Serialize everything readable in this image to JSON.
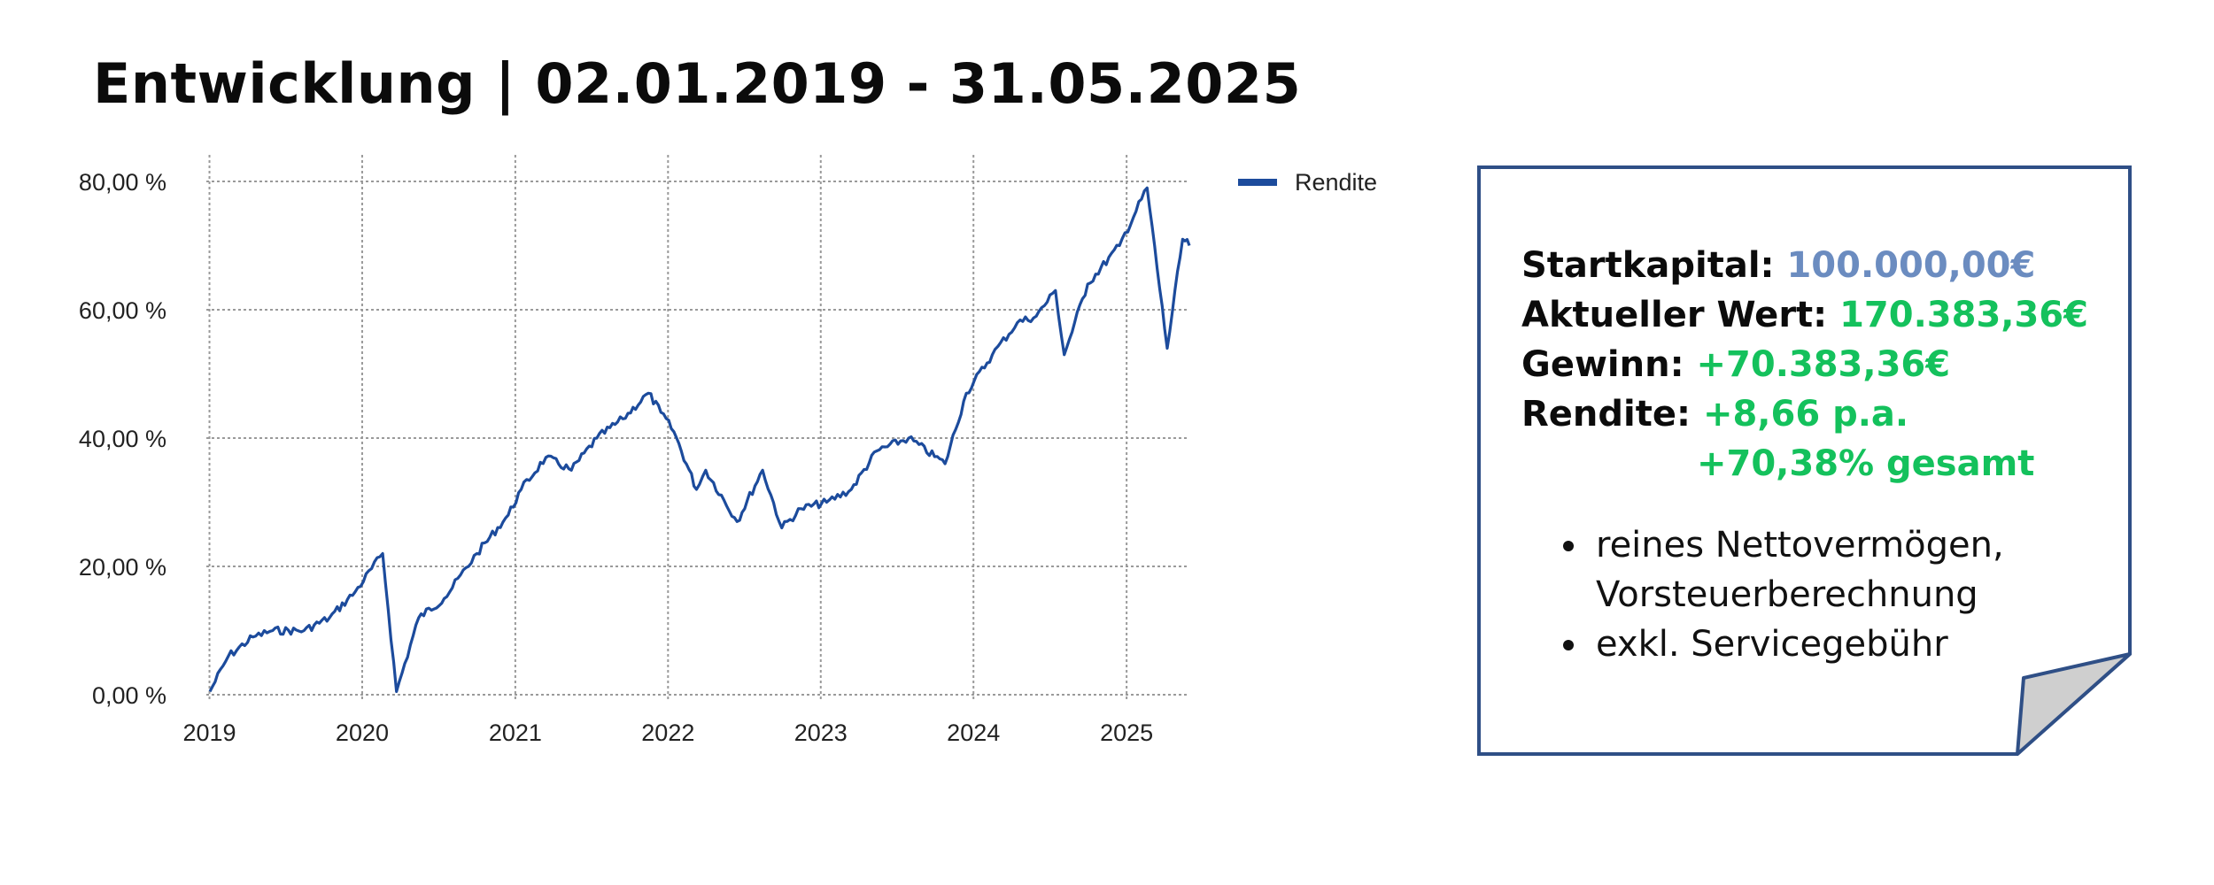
{
  "title": "Entwicklung | 02.01.2019 - 31.05.2025",
  "chart_data": {
    "type": "line",
    "xlabel": "",
    "ylabel": "",
    "x_ticks": [
      "2019",
      "2020",
      "2021",
      "2022",
      "2023",
      "2024",
      "2025"
    ],
    "y_ticks": [
      "0,00 %",
      "20,00 %",
      "40,00 %",
      "60,00 %",
      "80,00 %"
    ],
    "xlim": [
      "2019-01-02",
      "2025-05-31"
    ],
    "ylim": [
      0,
      80
    ],
    "grid": true,
    "legend_position": "top-right",
    "series": [
      {
        "name": "Rendite",
        "color": "#1c4b9c",
        "x": [
          "2019-01-02",
          "2019-02-15",
          "2019-04-15",
          "2019-06-01",
          "2019-08-15",
          "2019-10-15",
          "2019-12-15",
          "2020-02-19",
          "2020-03-23",
          "2020-05-15",
          "2020-07-15",
          "2020-10-01",
          "2020-12-15",
          "2021-01-15",
          "2021-03-15",
          "2021-05-15",
          "2021-07-15",
          "2021-09-15",
          "2021-11-15",
          "2021-12-15",
          "2022-01-15",
          "2022-03-10",
          "2022-04-01",
          "2022-06-15",
          "2022-08-15",
          "2022-09-30",
          "2022-11-15",
          "2023-01-15",
          "2023-03-15",
          "2023-05-15",
          "2023-07-30",
          "2023-10-25",
          "2023-12-15",
          "2024-02-15",
          "2024-04-15",
          "2024-05-30",
          "2024-07-15",
          "2024-08-05",
          "2024-09-30",
          "2024-12-15",
          "2025-02-19",
          "2025-04-08",
          "2025-05-15",
          "2025-05-31"
        ],
        "y": [
          0.5,
          6,
          9,
          10,
          10,
          12,
          16,
          22,
          0.5,
          12,
          15,
          22,
          28,
          32,
          37,
          35,
          40,
          43,
          47,
          44,
          41,
          32,
          35,
          27,
          35,
          26,
          29,
          30,
          32,
          38,
          40,
          36,
          47,
          53,
          58,
          59,
          63,
          53,
          64,
          70,
          79,
          54,
          71,
          70
        ]
      }
    ]
  },
  "note": {
    "rows": [
      {
        "label": "Startkapital:",
        "value": "100.000,00€",
        "color": "#6b8cc0"
      },
      {
        "label": "Aktueller Wert:",
        "value": "170.383,36€",
        "color": "#14c15c"
      },
      {
        "label": "Gewinn:",
        "value": "+70.383,36€",
        "color": "#14c15c"
      },
      {
        "label": "Rendite:",
        "value": "+8,66 p.a.",
        "color": "#14c15c"
      }
    ],
    "rendite_total": "+70,38% gesamt",
    "bullets": [
      "reines Nettovermögen, Vorsteuerberechnung",
      "exkl. Servicegebühr"
    ]
  }
}
